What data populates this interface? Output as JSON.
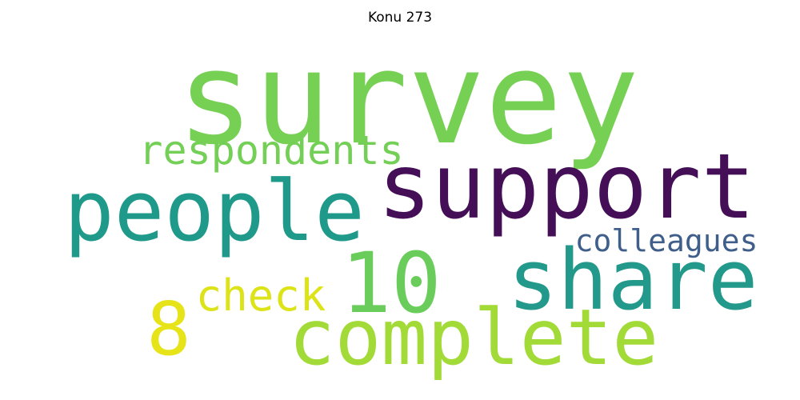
{
  "title": "Konu 273",
  "words": [
    {
      "text": "survey",
      "color": "#76d054"
    },
    {
      "text": "support",
      "color": "#440f57"
    },
    {
      "text": "people",
      "color": "#1f9a8a"
    },
    {
      "text": "share",
      "color": "#22998a"
    },
    {
      "text": "complete",
      "color": "#a2da38"
    },
    {
      "text": "10",
      "color": "#6acd5b"
    },
    {
      "text": "respondents",
      "color": "#74cf56"
    },
    {
      "text": "8",
      "color": "#e6e419"
    },
    {
      "text": "check",
      "color": "#dce318"
    },
    {
      "text": "colleagues",
      "color": "#3f5f8a"
    }
  ]
}
